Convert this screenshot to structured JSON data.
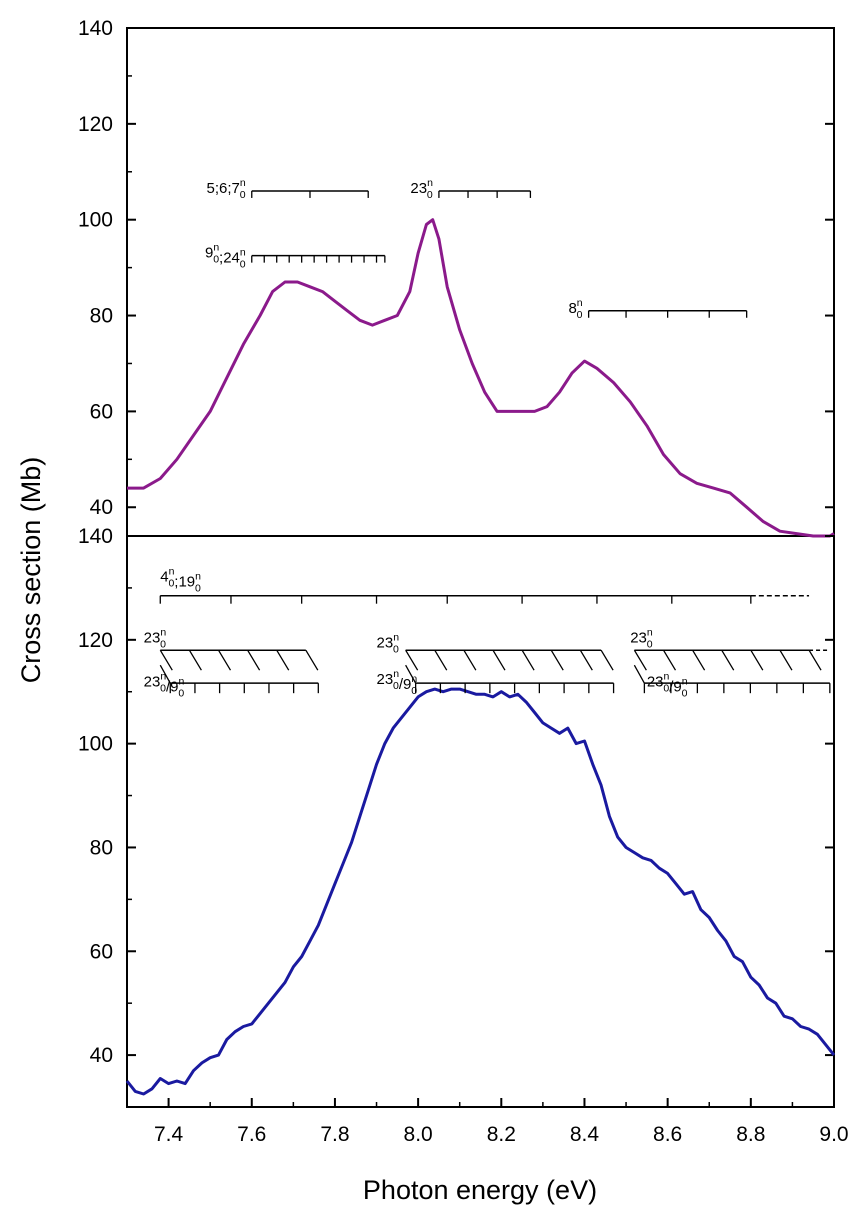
{
  "chart_data": [
    {
      "panel": "top",
      "type": "line",
      "ylabel": "Cross section (Mb)",
      "xlim": [
        7.3,
        9.0
      ],
      "ylim": [
        34,
        140
      ],
      "yticks": [
        40,
        60,
        80,
        100,
        120,
        140
      ],
      "color": "#8b1a8b",
      "series": [
        {
          "values": [
            [
              7.3,
              44
            ],
            [
              7.34,
              44
            ],
            [
              7.38,
              46
            ],
            [
              7.42,
              50
            ],
            [
              7.46,
              55
            ],
            [
              7.5,
              60
            ],
            [
              7.54,
              67
            ],
            [
              7.58,
              74
            ],
            [
              7.62,
              80
            ],
            [
              7.65,
              85
            ],
            [
              7.68,
              87
            ],
            [
              7.71,
              87
            ],
            [
              7.74,
              86
            ],
            [
              7.77,
              85
            ],
            [
              7.8,
              83
            ],
            [
              7.83,
              81
            ],
            [
              7.86,
              79
            ],
            [
              7.89,
              78
            ],
            [
              7.92,
              79
            ],
            [
              7.95,
              80
            ],
            [
              7.98,
              85
            ],
            [
              8.0,
              93
            ],
            [
              8.02,
              99
            ],
            [
              8.035,
              100
            ],
            [
              8.05,
              96
            ],
            [
              8.07,
              86
            ],
            [
              8.1,
              77
            ],
            [
              8.13,
              70
            ],
            [
              8.16,
              64
            ],
            [
              8.19,
              60
            ],
            [
              8.22,
              60
            ],
            [
              8.25,
              60
            ],
            [
              8.28,
              60
            ],
            [
              8.31,
              61
            ],
            [
              8.34,
              64
            ],
            [
              8.37,
              68
            ],
            [
              8.4,
              70.5
            ],
            [
              8.43,
              69
            ],
            [
              8.47,
              66
            ],
            [
              8.51,
              62
            ],
            [
              8.55,
              57
            ],
            [
              8.59,
              51
            ],
            [
              8.63,
              47
            ],
            [
              8.67,
              45
            ],
            [
              8.71,
              44
            ],
            [
              8.75,
              43
            ],
            [
              8.79,
              40
            ],
            [
              8.83,
              37
            ],
            [
              8.87,
              35
            ],
            [
              8.91,
              34.5
            ],
            [
              8.95,
              34
            ],
            [
              8.99,
              34
            ],
            [
              9.0,
              34.5
            ]
          ]
        }
      ],
      "annotations": [
        {
          "base": "5;6;7",
          "sup": "n",
          "sub": "0",
          "x_start": 7.6,
          "x_end": 7.88,
          "y": 106,
          "ticks": [
            7.6,
            7.74,
            7.88
          ]
        },
        {
          "base": "9",
          "sup": "n",
          "sub": "0",
          "base2": ";24",
          "sup2": "n",
          "sub2": "0",
          "x_start": 7.6,
          "x_end": 7.92,
          "y": 92.5,
          "ticks": [
            7.6,
            7.63,
            7.66,
            7.69,
            7.72,
            7.75,
            7.78,
            7.81,
            7.84,
            7.87,
            7.9,
            7.92
          ]
        },
        {
          "base": "23",
          "sup": "n",
          "sub": "0",
          "x_start": 8.05,
          "x_end": 8.27,
          "y": 106,
          "ticks": [
            8.05,
            8.12,
            8.19,
            8.27
          ]
        },
        {
          "base": "8",
          "sup": "n",
          "sub": "0",
          "x_start": 8.41,
          "x_end": 8.79,
          "y": 81,
          "ticks": [
            8.41,
            8.5,
            8.6,
            8.7,
            8.79
          ]
        }
      ]
    },
    {
      "panel": "bottom",
      "type": "line",
      "xlabel": "Photon energy (eV)",
      "xlim": [
        7.3,
        9.0
      ],
      "xticks": [
        7.4,
        7.6,
        7.8,
        8.0,
        8.2,
        8.4,
        8.6,
        8.8,
        9.0
      ],
      "ylim": [
        30,
        140
      ],
      "yticks": [
        40,
        60,
        80,
        100,
        120,
        140
      ],
      "color": "#1a1aa0",
      "series": [
        {
          "values": [
            [
              7.3,
              35
            ],
            [
              7.32,
              33
            ],
            [
              7.34,
              32.5
            ],
            [
              7.36,
              33.5
            ],
            [
              7.38,
              35.5
            ],
            [
              7.4,
              34.5
            ],
            [
              7.42,
              35
            ],
            [
              7.44,
              34.5
            ],
            [
              7.46,
              37
            ],
            [
              7.48,
              38.5
            ],
            [
              7.5,
              39.5
            ],
            [
              7.52,
              40
            ],
            [
              7.54,
              43
            ],
            [
              7.56,
              44.5
            ],
            [
              7.58,
              45.5
            ],
            [
              7.6,
              46
            ],
            [
              7.62,
              48
            ],
            [
              7.64,
              50
            ],
            [
              7.66,
              52
            ],
            [
              7.68,
              54
            ],
            [
              7.7,
              57
            ],
            [
              7.72,
              59
            ],
            [
              7.74,
              62
            ],
            [
              7.76,
              65
            ],
            [
              7.78,
              69
            ],
            [
              7.8,
              73
            ],
            [
              7.82,
              77
            ],
            [
              7.84,
              81
            ],
            [
              7.86,
              86
            ],
            [
              7.88,
              91
            ],
            [
              7.9,
              96
            ],
            [
              7.92,
              100
            ],
            [
              7.94,
              103
            ],
            [
              7.96,
              105
            ],
            [
              7.98,
              107
            ],
            [
              8.0,
              109
            ],
            [
              8.02,
              110
            ],
            [
              8.04,
              110.5
            ],
            [
              8.06,
              110
            ],
            [
              8.08,
              110.5
            ],
            [
              8.1,
              110.5
            ],
            [
              8.12,
              110
            ],
            [
              8.14,
              109.5
            ],
            [
              8.16,
              109.5
            ],
            [
              8.18,
              109
            ],
            [
              8.2,
              110
            ],
            [
              8.22,
              109
            ],
            [
              8.24,
              109.5
            ],
            [
              8.26,
              108
            ],
            [
              8.28,
              106
            ],
            [
              8.3,
              104
            ],
            [
              8.32,
              103
            ],
            [
              8.34,
              102
            ],
            [
              8.36,
              103
            ],
            [
              8.38,
              100
            ],
            [
              8.4,
              100.5
            ],
            [
              8.42,
              96
            ],
            [
              8.44,
              92
            ],
            [
              8.46,
              86
            ],
            [
              8.48,
              82
            ],
            [
              8.5,
              80
            ],
            [
              8.52,
              79
            ],
            [
              8.54,
              78
            ],
            [
              8.56,
              77.5
            ],
            [
              8.58,
              76
            ],
            [
              8.6,
              75
            ],
            [
              8.62,
              73
            ],
            [
              8.64,
              71
            ],
            [
              8.66,
              71.5
            ],
            [
              8.68,
              68
            ],
            [
              8.7,
              66.5
            ],
            [
              8.72,
              64
            ],
            [
              8.74,
              62
            ],
            [
              8.76,
              59
            ],
            [
              8.78,
              58
            ],
            [
              8.8,
              55
            ],
            [
              8.82,
              53.5
            ],
            [
              8.84,
              51
            ],
            [
              8.86,
              50
            ],
            [
              8.88,
              47.5
            ],
            [
              8.9,
              47
            ],
            [
              8.92,
              45.5
            ],
            [
              8.94,
              45
            ],
            [
              8.96,
              44
            ],
            [
              8.98,
              42
            ],
            [
              9.0,
              40
            ]
          ]
        }
      ],
      "annotations": [
        {
          "base": "4",
          "sup": "n",
          "sub": "0",
          "base2": ";19",
          "sup2": "n",
          "sub2": "0",
          "x_start": 7.38,
          "x_end": 8.8,
          "dashed_to": 8.94,
          "y": 128.5,
          "ticks": [
            7.38,
            7.55,
            7.72,
            7.9,
            8.07,
            8.25,
            8.43,
            8.61,
            8.8
          ]
        },
        {
          "base": "23",
          "sup": "n",
          "sub": "0",
          "label_x": 7.34,
          "label_y": 119.5,
          "x_start": 7.38,
          "x_end": 7.73,
          "y": 118,
          "ticks": [
            7.38,
            7.45,
            7.52,
            7.59,
            7.66,
            7.73
          ],
          "dashed": false
        },
        {
          "base": "23",
          "sup": "n",
          "sub": "0",
          "base2": "/9",
          "sup2": "n",
          "sub2": "0",
          "label_x": 7.34,
          "label_y": 111,
          "x_start": 7.38,
          "x_end": 7.76,
          "y": 115.5
        },
        {
          "base": "23",
          "sup": "n",
          "sub": "0",
          "label_x": 7.9,
          "label_y": 118.5,
          "x_start": 7.97,
          "x_end": 8.44,
          "y": 118,
          "ticks": [
            7.97,
            8.04,
            8.11,
            8.18,
            8.25,
            8.32,
            8.39,
            8.44
          ]
        },
        {
          "base": "23",
          "sup": "n",
          "sub": "0",
          "base2": "/9",
          "sup2": "n",
          "sub2": "0",
          "label_x": 7.9,
          "label_y": 111.5,
          "x_start": 7.97,
          "x_end": 8.47,
          "y": 115.5
        },
        {
          "base": "23",
          "sup": "n",
          "sub": "0",
          "label_x": 8.51,
          "label_y": 119.5,
          "x_start": 8.52,
          "x_end": 8.97,
          "y": 118,
          "ticks": [
            8.52,
            8.59,
            8.66,
            8.73,
            8.8,
            8.87,
            8.94
          ],
          "dashed_to": 8.99
        },
        {
          "base": "23",
          "sup": "n",
          "sub": "0",
          "base2": "/9",
          "sup2": "n",
          "sub2": "0",
          "label_x": 8.55,
          "label_y": 111,
          "x_start": 8.52,
          "x_end": 8.99,
          "y": 115.5
        }
      ]
    }
  ]
}
